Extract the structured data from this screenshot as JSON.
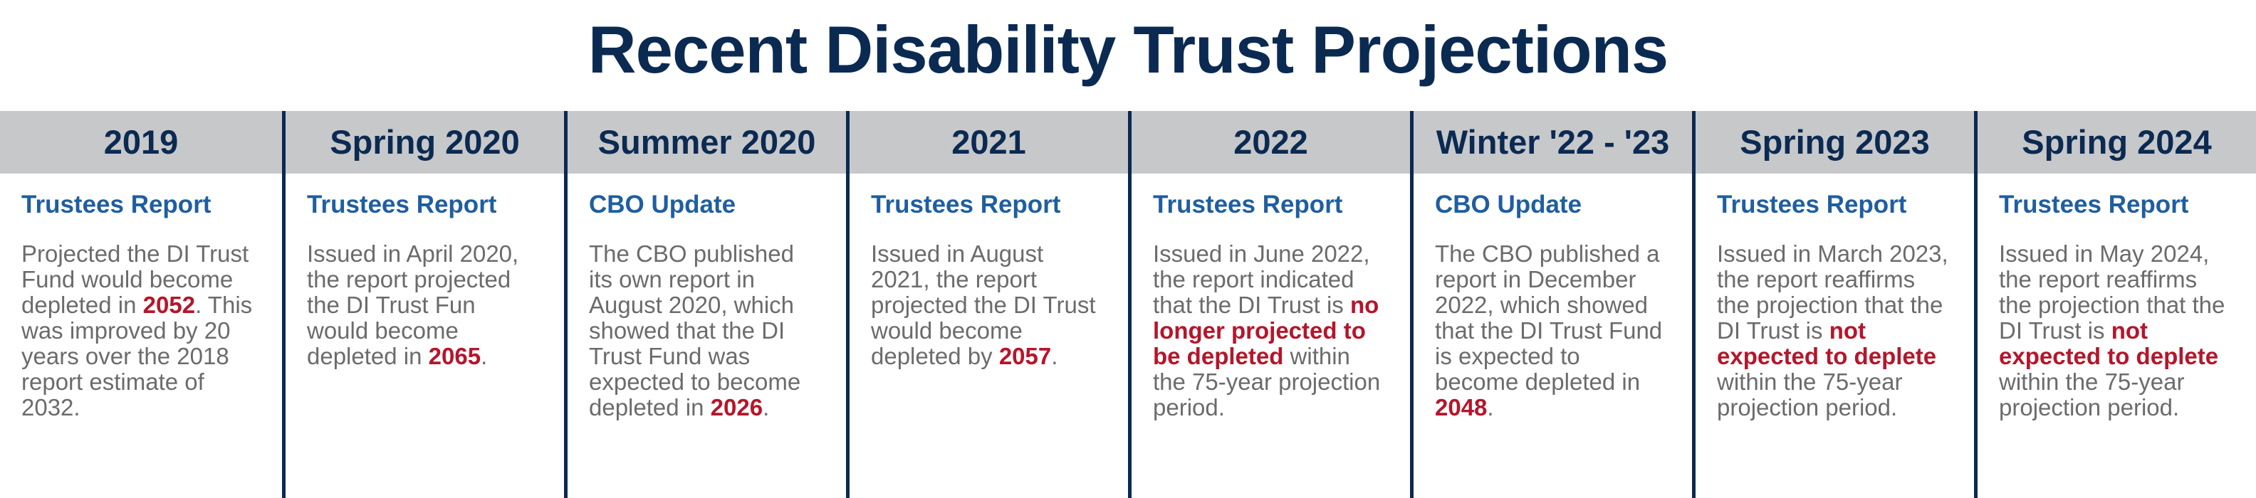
{
  "title": "Recent Disability Trust Projections",
  "columns": [
    {
      "year": "2019",
      "kind": "Trustees Report",
      "desc": {
        "pre": "Projected the DI Trust Fund would become depleted in ",
        "highlight": "2052",
        "post": ". This was improved by 20 years over the 2018 report estimate of 2032."
      }
    },
    {
      "year": "Spring 2020",
      "kind": "Trustees Report",
      "desc": {
        "pre": "Issued in April 2020, the report projected the DI Trust Fun would become depleted in ",
        "highlight": "2065",
        "post": "."
      }
    },
    {
      "year": "Summer 2020",
      "kind": "CBO Update",
      "desc": {
        "pre": "The CBO published its own report in August 2020, which showed that the DI Trust Fund was expected to become depleted in ",
        "highlight": "2026",
        "post": "."
      }
    },
    {
      "year": "2021",
      "kind": "Trustees Report",
      "desc": {
        "pre": "Issued in August 2021, the report projected the DI Trust would become depleted by ",
        "highlight": "2057",
        "post": "."
      }
    },
    {
      "year": "2022",
      "kind": "Trustees Report",
      "desc": {
        "pre": "Issued in June 2022, the report indicated that the DI Trust is ",
        "highlight": "no longer projected to be depleted",
        "post": " within the 75-year projection period."
      }
    },
    {
      "year": "Winter '22 - '23",
      "kind": "CBO Update",
      "desc": {
        "pre": "The CBO published a report in December 2022, which showed that the DI Trust Fund is expected to become depleted in ",
        "highlight": "2048",
        "post": "."
      }
    },
    {
      "year": "Spring 2023",
      "kind": "Trustees Report",
      "desc": {
        "pre": "Issued in March 2023, the report reaffirms the projection that the DI Trust is ",
        "highlight": "not expected to deplete",
        "post": " within the 75-year projection period."
      }
    },
    {
      "year": "Spring 2024",
      "kind": "Trustees Report",
      "desc": {
        "pre": "Issued in May 2024, the report reaffirms the projection that the DI Trust is ",
        "highlight": "not expected to deplete",
        "post": " within the 75-year projection period."
      }
    }
  ]
}
